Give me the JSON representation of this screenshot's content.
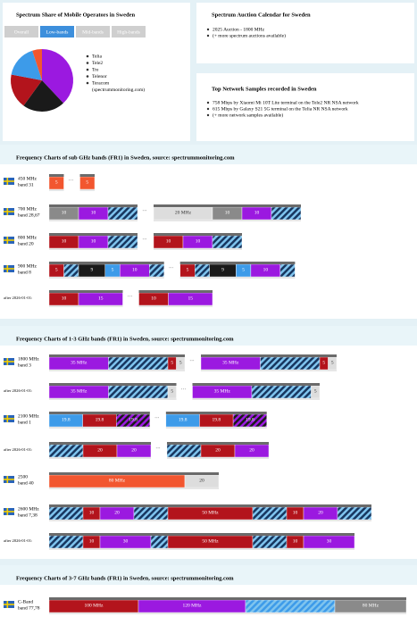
{
  "share_panel": {
    "title": "Spectrum Share of Mobile Operators in Sweden",
    "tabs": [
      "Overall",
      "Low-bands",
      "Mid-bands",
      "High-bands"
    ],
    "active_tab": 1
  },
  "chart_data": {
    "type": "pie",
    "categories": [
      "Telia",
      "Tele2",
      "Tre",
      "Telenor",
      "Teracom"
    ],
    "values": [
      38,
      22,
      18,
      17,
      5
    ],
    "colors": [
      "#9b19e0",
      "#1a1a1a",
      "#b3141c",
      "#3d9be9",
      "#f2562f"
    ],
    "source_note": "(spectrummonitoring.com)"
  },
  "auction_panel": {
    "title": "Spectrum Auction Calendar for Sweden",
    "items": [
      "2025 Auction - 1800 MHz",
      "(+ more spectrum auctions available)"
    ]
  },
  "samples_panel": {
    "title": "Top Network Samples recorded in Sweden",
    "items": [
      "758 Mbps by Xiaomi Mi 10T Lite terminal on the Tele2 NR NSA network",
      "615 Mbps by Galaxy S21 5G terminal on the Telia NR NSA network",
      "(+ more network samples available)"
    ]
  },
  "separator": "···",
  "sections": [
    {
      "title": "Frequency Charts of sub GHz bands (FR1) in Sweden, source: spectrummonitoring.com",
      "rows": [
        {
          "name": "450 MHz",
          "band": "band 31",
          "groups": [
            [
              {
                "mhz": 5,
                "label": "5",
                "color": "#f2562f"
              }
            ],
            [
              {
                "mhz": 5,
                "label": "5",
                "color": "#f2562f"
              }
            ]
          ]
        },
        {
          "name": "700 MHz",
          "band": "band 28,67",
          "groups": [
            [
              {
                "mhz": 10,
                "label": "10",
                "color": "#8a8a8a"
              },
              {
                "mhz": 10,
                "label": "10",
                "color": "#9b19e0"
              },
              {
                "mhz": 10,
                "color": "#7fc4ee",
                "hatch": "#17365f"
              }
            ],
            [
              {
                "mhz": 20,
                "label": "20 MHz",
                "color": "#dddddd"
              },
              {
                "mhz": 10,
                "label": "10",
                "color": "#8a8a8a"
              },
              {
                "mhz": 10,
                "label": "10",
                "color": "#9b19e0"
              },
              {
                "mhz": 10,
                "color": "#7fc4ee",
                "hatch": "#17365f"
              }
            ]
          ]
        },
        {
          "name": "800 MHz",
          "band": "band 20",
          "groups": [
            [
              {
                "mhz": 10,
                "label": "10",
                "color": "#b3141c"
              },
              {
                "mhz": 10,
                "label": "10",
                "color": "#9b19e0"
              },
              {
                "mhz": 10,
                "color": "#7fc4ee",
                "hatch": "#17365f"
              }
            ],
            [
              {
                "mhz": 10,
                "label": "10",
                "color": "#b3141c"
              },
              {
                "mhz": 10,
                "label": "10",
                "color": "#9b19e0"
              },
              {
                "mhz": 10,
                "color": "#7fc4ee",
                "hatch": "#17365f"
              }
            ]
          ]
        },
        {
          "name": "900 MHz",
          "band": "band 8",
          "groups": [
            [
              {
                "mhz": 5,
                "label": "5",
                "color": "#b3141c"
              },
              {
                "mhz": 5,
                "color": "#7fc4ee",
                "hatch": "#17365f"
              },
              {
                "mhz": 9,
                "label": "9",
                "color": "#1a1a1a"
              },
              {
                "mhz": 5,
                "label": "5",
                "color": "#3d9be9"
              },
              {
                "mhz": 10,
                "label": "10",
                "color": "#9b19e0"
              },
              {
                "mhz": 5,
                "color": "#7fc4ee",
                "hatch": "#17365f"
              }
            ],
            [
              {
                "mhz": 5,
                "label": "5",
                "color": "#b3141c"
              },
              {
                "mhz": 5,
                "color": "#7fc4ee",
                "hatch": "#17365f"
              },
              {
                "mhz": 9,
                "label": "9",
                "color": "#1a1a1a"
              },
              {
                "mhz": 5,
                "label": "5",
                "color": "#3d9be9"
              },
              {
                "mhz": 10,
                "label": "10",
                "color": "#9b19e0"
              },
              {
                "mhz": 5,
                "color": "#7fc4ee",
                "hatch": "#17365f"
              }
            ]
          ]
        },
        {
          "name": "after 2026-01-01:",
          "groups": [
            [
              {
                "mhz": 10,
                "label": "10",
                "color": "#b3141c"
              },
              {
                "mhz": 15,
                "label": "15",
                "color": "#9b19e0"
              }
            ],
            [
              {
                "mhz": 10,
                "label": "10",
                "color": "#b3141c"
              },
              {
                "mhz": 15,
                "label": "15",
                "color": "#9b19e0"
              }
            ]
          ]
        }
      ]
    },
    {
      "title": "Frequency Charts of 1-3 GHz bands (FR1) in Sweden, source: spectrummonitoring.com",
      "rows": [
        {
          "name": "1800 MHz",
          "band": "band 3",
          "groups": [
            [
              {
                "mhz": 35,
                "label": "35 MHz",
                "color": "#9b19e0"
              },
              {
                "mhz": 35,
                "color": "#7fc4ee",
                "hatch": "#17365f"
              },
              {
                "mhz": 5,
                "label": "5",
                "color": "#b3141c"
              },
              {
                "mhz": 5,
                "label": "5",
                "color": "#dddddd"
              }
            ],
            [
              {
                "mhz": 35,
                "label": "35 MHz",
                "color": "#9b19e0"
              },
              {
                "mhz": 35,
                "color": "#7fc4ee",
                "hatch": "#17365f"
              },
              {
                "mhz": 5,
                "label": "5",
                "color": "#b3141c"
              },
              {
                "mhz": 5,
                "label": "5",
                "color": "#dddddd"
              }
            ]
          ]
        },
        {
          "name": "after 2026-01-01:",
          "groups": [
            [
              {
                "mhz": 35,
                "label": "35 MHz",
                "color": "#9b19e0"
              },
              {
                "mhz": 35,
                "color": "#7fc4ee",
                "hatch": "#17365f"
              },
              {
                "mhz": 5,
                "label": "5",
                "color": "#dddddd"
              }
            ],
            [
              {
                "mhz": 35,
                "label": "35 MHz",
                "color": "#9b19e0"
              },
              {
                "mhz": 35,
                "color": "#7fc4ee",
                "hatch": "#17365f"
              },
              {
                "mhz": 5,
                "label": "5",
                "color": "#dddddd"
              }
            ]
          ]
        },
        {
          "name": "2100 MHz",
          "band": "band 1",
          "groups": [
            [
              {
                "mhz": 19.8,
                "label": "19.8",
                "color": "#3d9be9"
              },
              {
                "mhz": 19.8,
                "label": "19.8",
                "color": "#b3141c"
              },
              {
                "mhz": 19.8,
                "label": "19.8",
                "color": "#9b19e0",
                "hatch": "#1a1a1a"
              }
            ],
            [
              {
                "mhz": 19.8,
                "label": "19.8",
                "color": "#3d9be9"
              },
              {
                "mhz": 19.8,
                "label": "19.8",
                "color": "#b3141c"
              },
              {
                "mhz": 19.8,
                "label": "19.8",
                "color": "#9b19e0",
                "hatch": "#1a1a1a"
              }
            ]
          ]
        },
        {
          "name": "after 2026-01-01:",
          "groups": [
            [
              {
                "mhz": 20,
                "color": "#7fc4ee",
                "hatch": "#17365f"
              },
              {
                "mhz": 20,
                "label": "20",
                "color": "#b3141c"
              },
              {
                "mhz": 20,
                "label": "20",
                "color": "#9b19e0"
              }
            ],
            [
              {
                "mhz": 20,
                "color": "#7fc4ee",
                "hatch": "#17365f"
              },
              {
                "mhz": 20,
                "label": "20",
                "color": "#b3141c"
              },
              {
                "mhz": 20,
                "label": "20",
                "color": "#9b19e0"
              }
            ]
          ]
        },
        {
          "name": "2500",
          "band": "band 40",
          "groups": [
            [
              {
                "mhz": 80,
                "label": "80 MHz",
                "color": "#f2562f"
              },
              {
                "mhz": 20,
                "label": "20",
                "color": "#dddddd"
              }
            ]
          ]
        },
        {
          "name": "2600 MHz",
          "band": "band 7,38",
          "groups": [
            [
              {
                "mhz": 20,
                "color": "#7fc4ee",
                "hatch": "#17365f"
              },
              {
                "mhz": 10,
                "label": "10",
                "color": "#b3141c"
              },
              {
                "mhz": 20,
                "label": "20",
                "color": "#9b19e0"
              },
              {
                "mhz": 20,
                "color": "#7fc4ee",
                "hatch": "#17365f"
              },
              {
                "mhz": 50,
                "label": "50 MHz",
                "color": "#b3141c"
              },
              {
                "mhz": 20,
                "color": "#7fc4ee",
                "hatch": "#17365f"
              },
              {
                "mhz": 10,
                "label": "10",
                "color": "#b3141c"
              },
              {
                "mhz": 20,
                "label": "20",
                "color": "#9b19e0"
              },
              {
                "mhz": 20,
                "color": "#7fc4ee",
                "hatch": "#17365f"
              }
            ]
          ]
        },
        {
          "name": "after 2026-01-01:",
          "groups": [
            [
              {
                "mhz": 20,
                "color": "#7fc4ee",
                "hatch": "#17365f"
              },
              {
                "mhz": 10,
                "label": "10",
                "color": "#b3141c"
              },
              {
                "mhz": 30,
                "label": "30",
                "color": "#9b19e0"
              },
              {
                "mhz": 10,
                "color": "#7fc4ee",
                "hatch": "#17365f"
              },
              {
                "mhz": 50,
                "label": "50 MHz",
                "color": "#b3141c"
              },
              {
                "mhz": 20,
                "color": "#7fc4ee",
                "hatch": "#17365f"
              },
              {
                "mhz": 10,
                "label": "10",
                "color": "#b3141c"
              },
              {
                "mhz": 30,
                "label": "30",
                "color": "#9b19e0"
              }
            ]
          ]
        }
      ]
    },
    {
      "title": "Frequency Charts of 3-7 GHz bands (FR1) in Sweden, source: spectrummonitoring.com",
      "rows": [
        {
          "name": "C-Band",
          "band": "band 77,78",
          "groups": [
            [
              {
                "mhz": 100,
                "label": "100 MHz",
                "color": "#b3141c"
              },
              {
                "mhz": 120,
                "label": "120 MHz",
                "color": "#9b19e0"
              },
              {
                "mhz": 100,
                "color": "#7fc4ee",
                "hatch": "#3d9be9"
              },
              {
                "mhz": 80,
                "label": "80 MHz",
                "color": "#8a8a8a"
              }
            ]
          ]
        }
      ]
    }
  ]
}
